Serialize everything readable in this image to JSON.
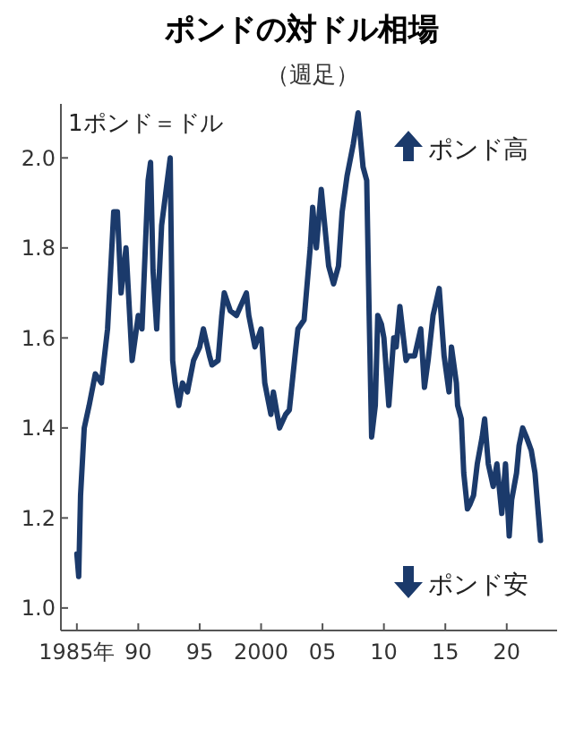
{
  "chart_data": {
    "type": "line",
    "title": "ポンドの対ドル相場",
    "subtitle": "（週足）",
    "ylabel": "1ポンド＝ドル",
    "annotations": [
      "ポンド高",
      "ポンド安"
    ],
    "x": [
      1985.0,
      1985.15,
      1985.3,
      1985.6,
      1986,
      1986.5,
      1987,
      1987.5,
      1988,
      1988.3,
      1988.6,
      1989,
      1989.5,
      1990,
      1990.3,
      1990.8,
      1991,
      1991.2,
      1991.5,
      1991.9,
      1992.6,
      1992.8,
      1993,
      1993.3,
      1993.6,
      1994,
      1994.5,
      1995,
      1995.3,
      1995.8,
      1996,
      1996.5,
      1996.8,
      1997,
      1997.5,
      1998,
      1998.8,
      1999,
      1999.5,
      2000,
      2000.3,
      2000.8,
      2001,
      2001.5,
      2002,
      2002.3,
      2002.8,
      2003,
      2003.5,
      2004,
      2004.2,
      2004.5,
      2004.9,
      2005.5,
      2005.9,
      2006.3,
      2006.6,
      2007,
      2007.5,
      2007.9,
      2008.3,
      2008.6,
      2008.8,
      2009,
      2009.3,
      2009.5,
      2009.8,
      2010,
      2010.4,
      2010.8,
      2011,
      2011.3,
      2011.8,
      2012,
      2012.5,
      2013,
      2013.3,
      2013.6,
      2014,
      2014.5,
      2014.9,
      2015.3,
      2015.5,
      2015.9,
      2016,
      2016.3,
      2016.5,
      2016.8,
      2017,
      2017.3,
      2017.6,
      2018,
      2018.2,
      2018.5,
      2018.9,
      2019.2,
      2019.6,
      2019.9,
      2020.2,
      2020.4,
      2020.8,
      2021,
      2021.3,
      2021.6,
      2022,
      2022.3,
      2022.6,
      2022.75
    ],
    "series": [
      {
        "color": "#1b3a6b",
        "values": [
          1.12,
          1.07,
          1.25,
          1.4,
          1.45,
          1.52,
          1.5,
          1.62,
          1.88,
          1.88,
          1.7,
          1.8,
          1.55,
          1.65,
          1.62,
          1.95,
          1.99,
          1.75,
          1.62,
          1.85,
          2.0,
          1.55,
          1.5,
          1.45,
          1.5,
          1.48,
          1.55,
          1.58,
          1.62,
          1.56,
          1.54,
          1.55,
          1.65,
          1.7,
          1.66,
          1.65,
          1.7,
          1.65,
          1.58,
          1.62,
          1.5,
          1.43,
          1.48,
          1.4,
          1.43,
          1.44,
          1.57,
          1.62,
          1.64,
          1.8,
          1.89,
          1.8,
          1.93,
          1.76,
          1.72,
          1.76,
          1.88,
          1.96,
          2.03,
          2.1,
          1.98,
          1.95,
          1.65,
          1.38,
          1.45,
          1.65,
          1.63,
          1.6,
          1.45,
          1.6,
          1.58,
          1.67,
          1.55,
          1.56,
          1.56,
          1.62,
          1.49,
          1.55,
          1.65,
          1.71,
          1.56,
          1.48,
          1.58,
          1.5,
          1.45,
          1.42,
          1.3,
          1.22,
          1.23,
          1.25,
          1.32,
          1.38,
          1.42,
          1.32,
          1.27,
          1.32,
          1.21,
          1.32,
          1.16,
          1.24,
          1.3,
          1.36,
          1.4,
          1.38,
          1.35,
          1.3,
          1.2,
          1.15
        ]
      }
    ],
    "xlim": [
      1983.7,
      2024.1
    ],
    "ylim": [
      0.95,
      2.12
    ],
    "xticks": [
      {
        "value": 1985,
        "label": "1985年"
      },
      {
        "value": 1990,
        "label": "90"
      },
      {
        "value": 1995,
        "label": "95"
      },
      {
        "value": 2000,
        "label": "2000"
      },
      {
        "value": 2005,
        "label": "05"
      },
      {
        "value": 2010,
        "label": "10"
      },
      {
        "value": 2015,
        "label": "15"
      },
      {
        "value": 2020,
        "label": "20"
      }
    ],
    "yticks": [
      {
        "value": 1,
        "label": "1.0"
      },
      {
        "value": 1.2,
        "label": "1.2"
      },
      {
        "value": 1.4,
        "label": "1.4"
      },
      {
        "value": 1.6,
        "label": "1.6"
      },
      {
        "value": 1.8,
        "label": "1.8"
      },
      {
        "value": 2,
        "label": "2.0"
      }
    ],
    "grid": false,
    "marker": "none",
    "line_style": "solid"
  }
}
